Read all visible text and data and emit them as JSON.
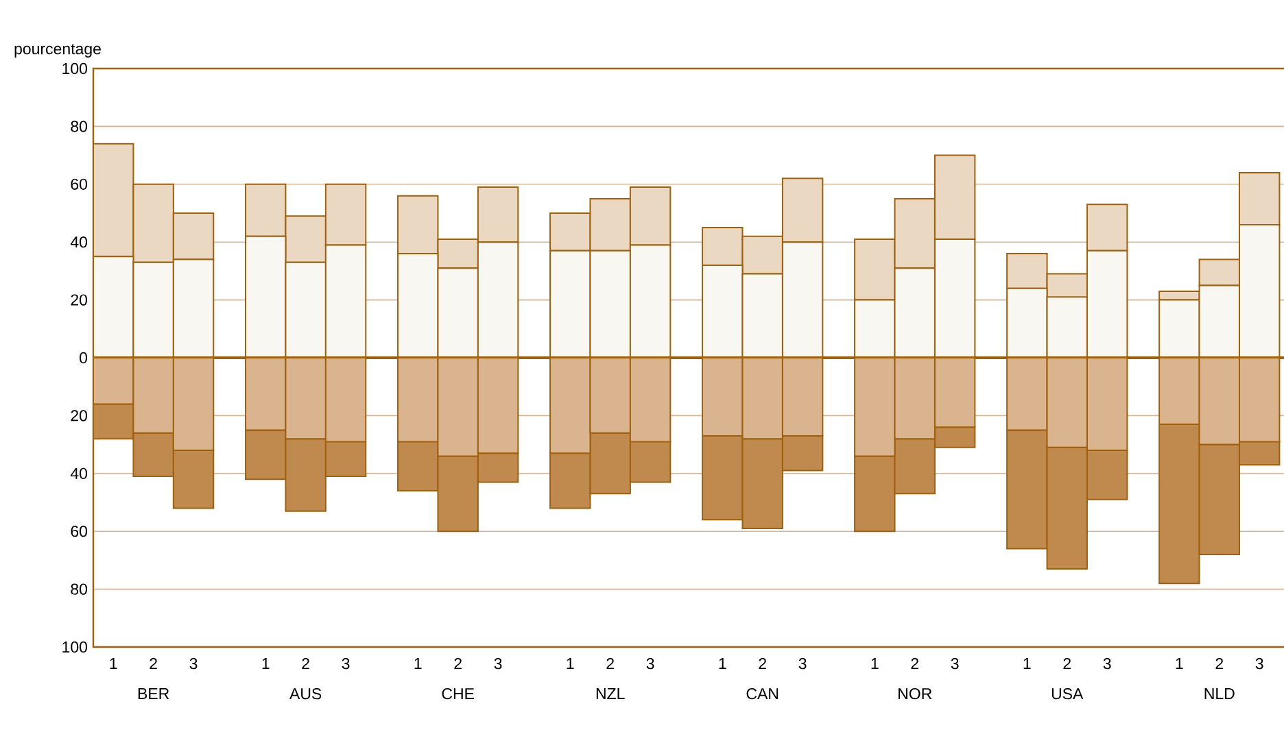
{
  "chart_data": {
    "type": "bar",
    "stacked": true,
    "categories": [
      "1",
      "2",
      "3",
      "1",
      "2",
      "3",
      "1",
      "2",
      "3",
      "1",
      "2",
      "3",
      "1",
      "2",
      "3",
      "1",
      "2",
      "3",
      "1",
      "2",
      "3",
      "1",
      "2",
      "3"
    ],
    "series": [
      {
        "color": "#f9f7f2",
        "values": [
          35,
          33,
          34,
          42,
          33,
          39,
          36,
          31,
          40,
          37,
          37,
          39,
          32,
          29,
          40,
          20,
          31,
          41,
          24,
          21,
          37,
          20,
          25,
          46
        ]
      },
      {
        "color": "#ebd8c3",
        "values": [
          39,
          27,
          16,
          18,
          16,
          21,
          20,
          10,
          19,
          13,
          18,
          20,
          13,
          13,
          22,
          21,
          24,
          29,
          12,
          8,
          16,
          3,
          9,
          18
        ]
      },
      {
        "color": "#d9b48f",
        "values": [
          -16,
          -26,
          -32,
          -25,
          -28,
          -29,
          -29,
          -34,
          -33,
          -33,
          -26,
          -29,
          -27,
          -28,
          -27,
          -34,
          -28,
          -24,
          -25,
          -31,
          -32,
          -23,
          -30,
          -29
        ]
      },
      {
        "color": "#c0894d",
        "values": [
          -12,
          -15,
          -20,
          -17,
          -25,
          -12,
          -17,
          -26,
          -10,
          -19,
          -21,
          -14,
          -29,
          -31,
          -12,
          -26,
          -19,
          -7,
          -41,
          -42,
          -17,
          -55,
          -38,
          -8
        ]
      }
    ],
    "ylabel": "pourcentage",
    "ylim": [
      -100,
      100
    ],
    "yticks": [
      {
        "value": -100,
        "label": "100"
      },
      {
        "value": -80,
        "label": "80"
      },
      {
        "value": -60,
        "label": "60"
      },
      {
        "value": -40,
        "label": "40"
      },
      {
        "value": -20,
        "label": "20"
      },
      0,
      20,
      40,
      60,
      80,
      100
    ],
    "grid": "y",
    "ref_lines": [
      {
        "axis": "y",
        "value": 0,
        "color": "#a0600a"
      }
    ],
    "annotations": [
      "BER",
      "AUS",
      "CHE",
      "NZL",
      "CAN",
      "NOR",
      "USA",
      "NLD"
    ]
  }
}
